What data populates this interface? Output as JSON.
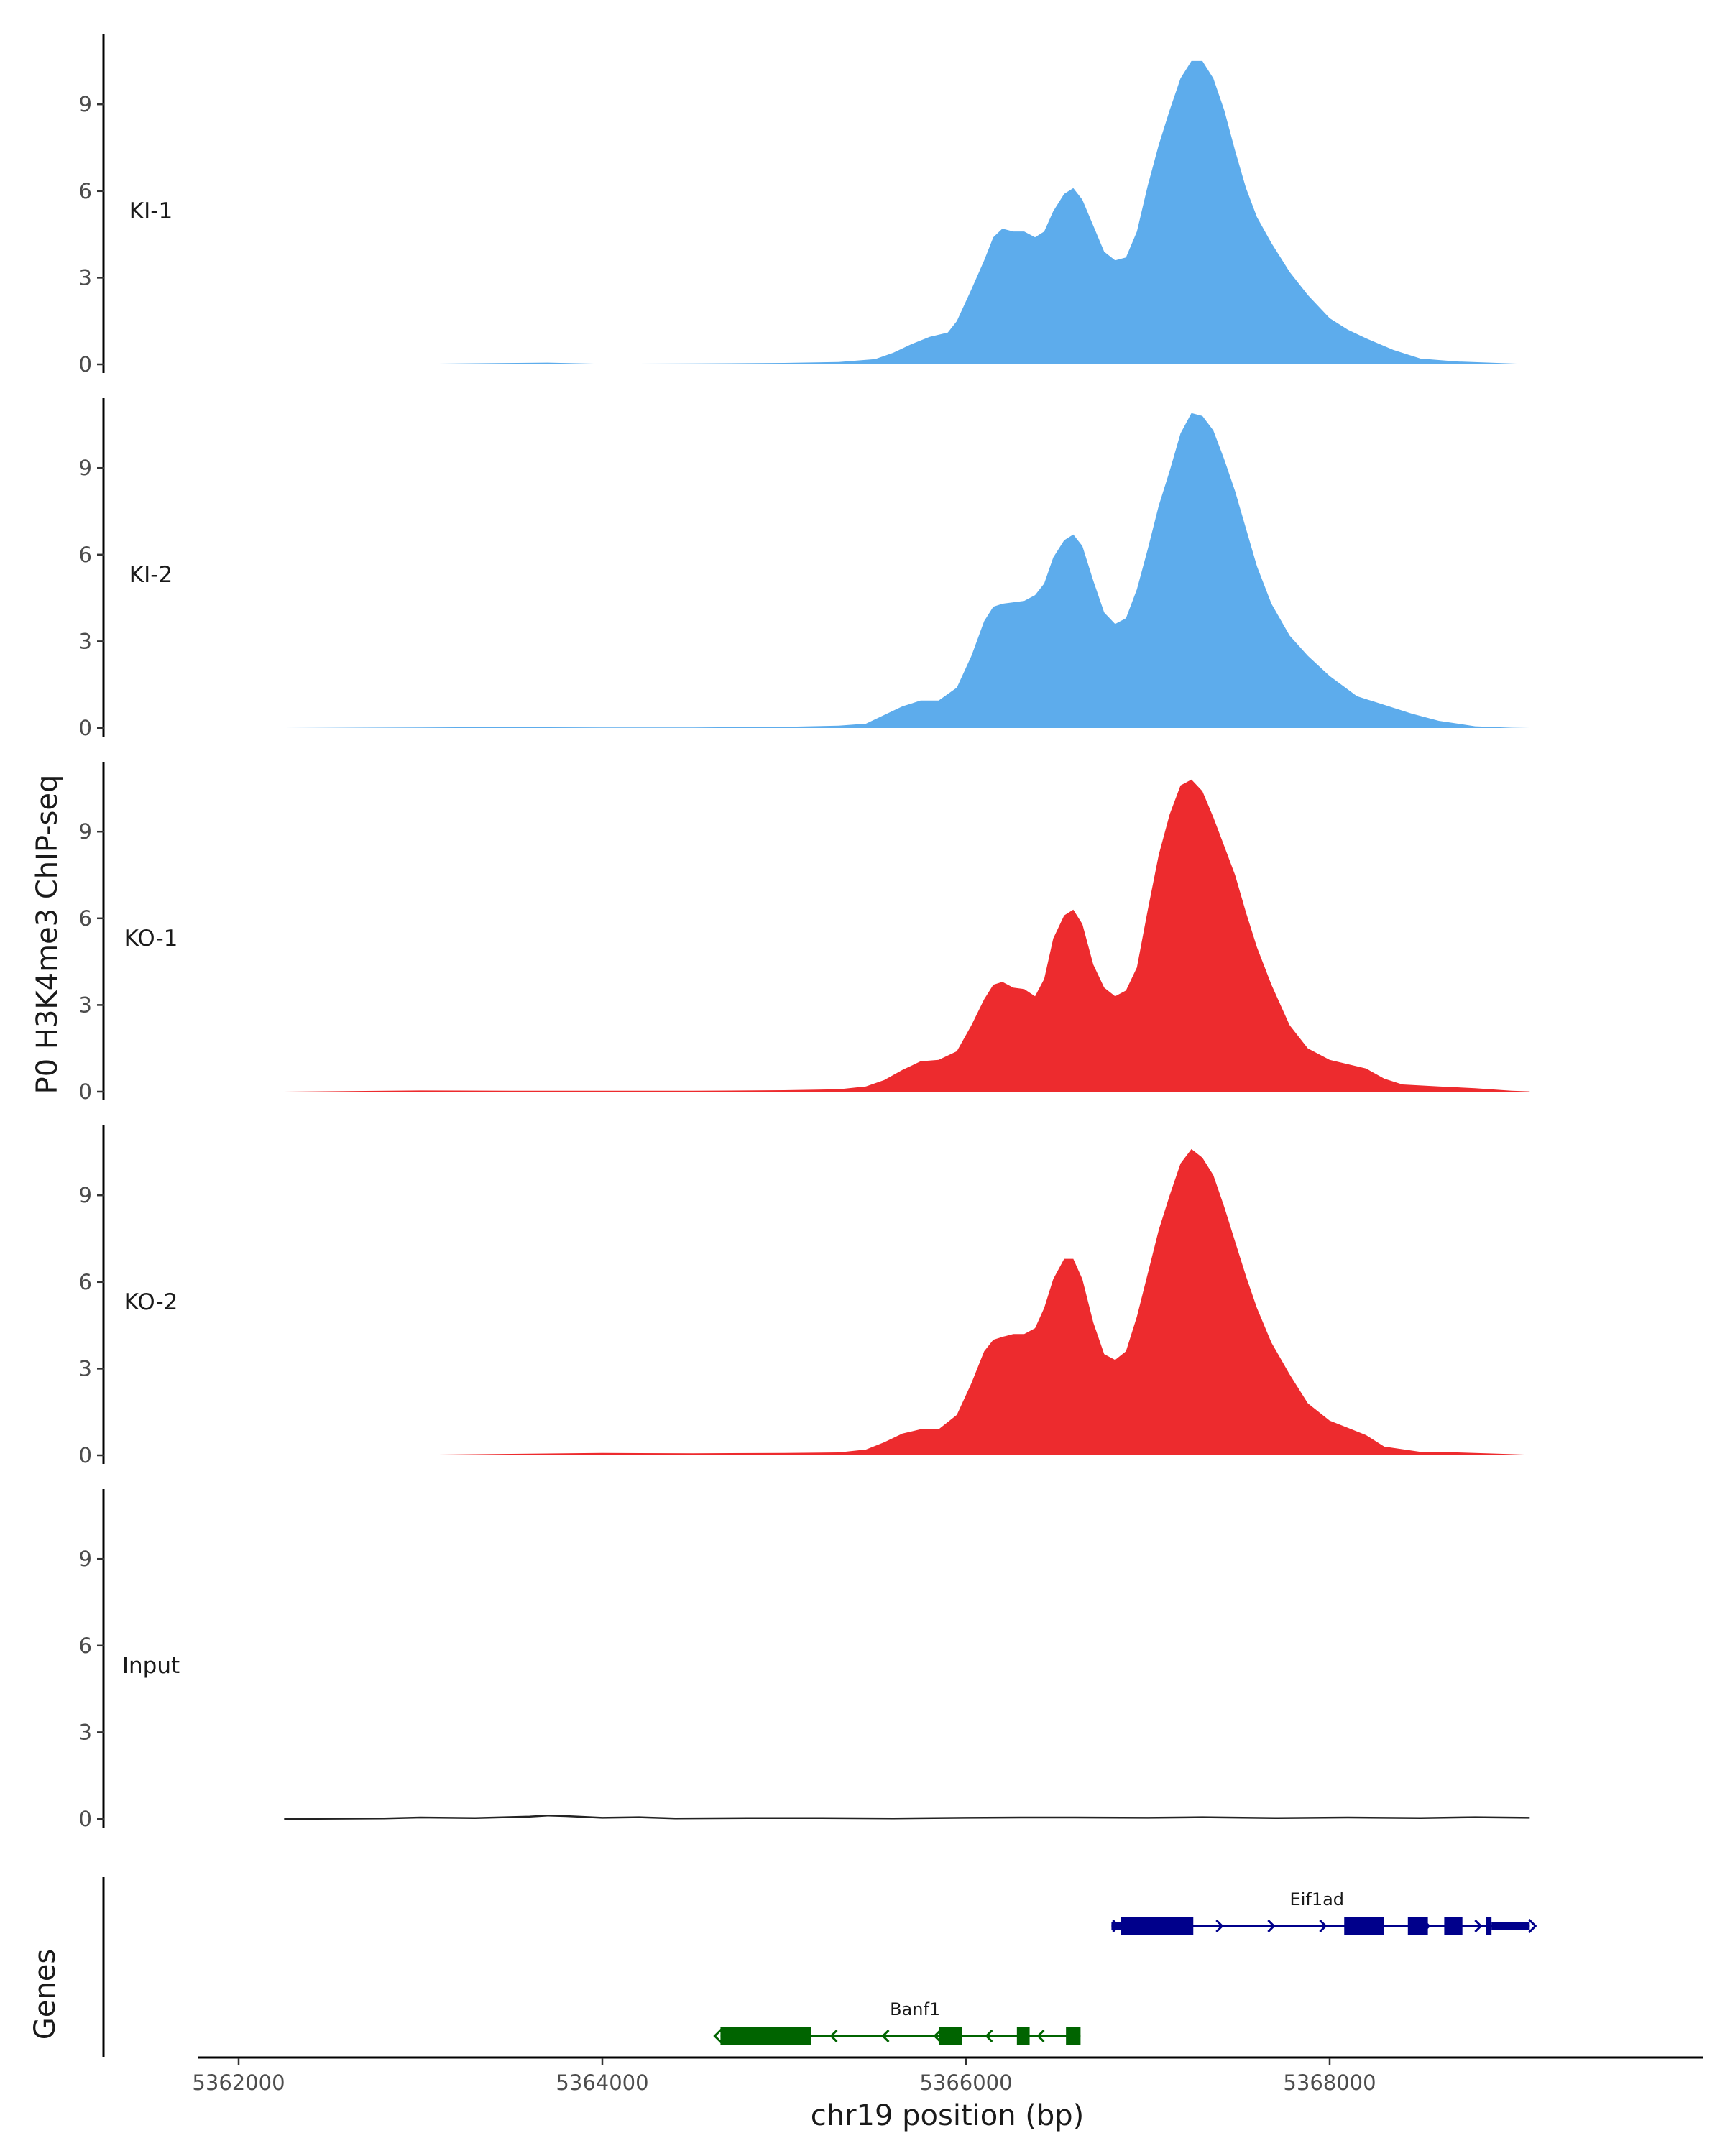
{
  "chart_data": {
    "type": "area",
    "title": "",
    "ylabel": "P0 H3K4me3 ChIP-seq",
    "xlabel": "chr19 position (bp)",
    "xlim": [
      5361850,
      5369750
    ],
    "ylim": [
      0,
      11.4
    ],
    "yticks": [
      0,
      3,
      6,
      9
    ],
    "xticks": [
      5362000,
      5364000,
      5366000,
      5368000
    ],
    "xtick_labels": [
      "5362000",
      "5364000",
      "5366000",
      "5368000"
    ],
    "gene_track_label": "Genes",
    "colors": {
      "KI": "#5DACEC",
      "KO": "#ED2B2E",
      "Input": "#222222",
      "axis": "#000000",
      "gene_plus": "#00008B",
      "gene_minus": "#006400"
    },
    "tracks": [
      {
        "name": "KI-1",
        "color": "#5DACEC",
        "points": [
          [
            5362250,
            0
          ],
          [
            5363000,
            0.02
          ],
          [
            5363700,
            0.06
          ],
          [
            5364000,
            0.02
          ],
          [
            5364500,
            0.03
          ],
          [
            5365000,
            0.05
          ],
          [
            5365300,
            0.08
          ],
          [
            5365500,
            0.18
          ],
          [
            5365600,
            0.4
          ],
          [
            5365700,
            0.7
          ],
          [
            5365800,
            0.95
          ],
          [
            5365900,
            1.1
          ],
          [
            5365950,
            1.5
          ],
          [
            5366030,
            2.6
          ],
          [
            5366100,
            3.6
          ],
          [
            5366150,
            4.4
          ],
          [
            5366200,
            4.7
          ],
          [
            5366260,
            4.6
          ],
          [
            5366320,
            4.6
          ],
          [
            5366380,
            4.4
          ],
          [
            5366430,
            4.6
          ],
          [
            5366480,
            5.3
          ],
          [
            5366540,
            5.9
          ],
          [
            5366590,
            6.1
          ],
          [
            5366640,
            5.7
          ],
          [
            5366700,
            4.8
          ],
          [
            5366760,
            3.9
          ],
          [
            5366820,
            3.6
          ],
          [
            5366880,
            3.7
          ],
          [
            5366940,
            4.6
          ],
          [
            5367000,
            6.2
          ],
          [
            5367060,
            7.6
          ],
          [
            5367120,
            8.8
          ],
          [
            5367180,
            9.9
          ],
          [
            5367240,
            10.5
          ],
          [
            5367300,
            10.5
          ],
          [
            5367360,
            9.9
          ],
          [
            5367420,
            8.8
          ],
          [
            5367480,
            7.4
          ],
          [
            5367540,
            6.1
          ],
          [
            5367600,
            5.1
          ],
          [
            5367680,
            4.2
          ],
          [
            5367780,
            3.2
          ],
          [
            5367880,
            2.4
          ],
          [
            5368000,
            1.6
          ],
          [
            5368100,
            1.2
          ],
          [
            5368200,
            0.9
          ],
          [
            5368350,
            0.5
          ],
          [
            5368500,
            0.2
          ],
          [
            5368700,
            0.1
          ],
          [
            5369000,
            0.03
          ],
          [
            5369100,
            0.01
          ]
        ]
      },
      {
        "name": "KI-2",
        "color": "#5DACEC",
        "points": [
          [
            5362250,
            0
          ],
          [
            5363000,
            0.02
          ],
          [
            5363500,
            0.03
          ],
          [
            5364000,
            0.02
          ],
          [
            5364500,
            0.02
          ],
          [
            5365000,
            0.04
          ],
          [
            5365300,
            0.08
          ],
          [
            5365450,
            0.15
          ],
          [
            5365550,
            0.45
          ],
          [
            5365650,
            0.75
          ],
          [
            5365750,
            0.95
          ],
          [
            5365850,
            0.95
          ],
          [
            5365950,
            1.4
          ],
          [
            5366030,
            2.5
          ],
          [
            5366100,
            3.7
          ],
          [
            5366150,
            4.2
          ],
          [
            5366200,
            4.3
          ],
          [
            5366260,
            4.35
          ],
          [
            5366320,
            4.4
          ],
          [
            5366380,
            4.6
          ],
          [
            5366430,
            5.0
          ],
          [
            5366480,
            5.9
          ],
          [
            5366540,
            6.5
          ],
          [
            5366590,
            6.7
          ],
          [
            5366640,
            6.3
          ],
          [
            5366700,
            5.1
          ],
          [
            5366760,
            4.0
          ],
          [
            5366820,
            3.6
          ],
          [
            5366880,
            3.8
          ],
          [
            5366940,
            4.8
          ],
          [
            5367000,
            6.2
          ],
          [
            5367060,
            7.7
          ],
          [
            5367120,
            8.9
          ],
          [
            5367180,
            10.2
          ],
          [
            5367240,
            10.9
          ],
          [
            5367300,
            10.8
          ],
          [
            5367360,
            10.3
          ],
          [
            5367420,
            9.3
          ],
          [
            5367480,
            8.2
          ],
          [
            5367540,
            6.9
          ],
          [
            5367600,
            5.6
          ],
          [
            5367680,
            4.3
          ],
          [
            5367780,
            3.2
          ],
          [
            5367880,
            2.5
          ],
          [
            5368000,
            1.8
          ],
          [
            5368150,
            1.1
          ],
          [
            5368300,
            0.8
          ],
          [
            5368450,
            0.5
          ],
          [
            5368600,
            0.25
          ],
          [
            5368800,
            0.06
          ],
          [
            5369000,
            0.01
          ],
          [
            5369100,
            0
          ]
        ]
      },
      {
        "name": "KO-1",
        "color": "#ED2B2E",
        "points": [
          [
            5362250,
            0
          ],
          [
            5363000,
            0.04
          ],
          [
            5363500,
            0.03
          ],
          [
            5364000,
            0.03
          ],
          [
            5364500,
            0.03
          ],
          [
            5365000,
            0.05
          ],
          [
            5365300,
            0.08
          ],
          [
            5365450,
            0.18
          ],
          [
            5365550,
            0.4
          ],
          [
            5365650,
            0.75
          ],
          [
            5365750,
            1.05
          ],
          [
            5365850,
            1.1
          ],
          [
            5365950,
            1.4
          ],
          [
            5366030,
            2.3
          ],
          [
            5366100,
            3.2
          ],
          [
            5366150,
            3.7
          ],
          [
            5366200,
            3.8
          ],
          [
            5366260,
            3.6
          ],
          [
            5366320,
            3.55
          ],
          [
            5366380,
            3.3
          ],
          [
            5366430,
            3.9
          ],
          [
            5366480,
            5.3
          ],
          [
            5366540,
            6.1
          ],
          [
            5366590,
            6.3
          ],
          [
            5366640,
            5.8
          ],
          [
            5366700,
            4.4
          ],
          [
            5366760,
            3.6
          ],
          [
            5366820,
            3.3
          ],
          [
            5366880,
            3.5
          ],
          [
            5366940,
            4.3
          ],
          [
            5367000,
            6.3
          ],
          [
            5367060,
            8.2
          ],
          [
            5367120,
            9.6
          ],
          [
            5367180,
            10.6
          ],
          [
            5367240,
            10.8
          ],
          [
            5367300,
            10.4
          ],
          [
            5367360,
            9.5
          ],
          [
            5367420,
            8.5
          ],
          [
            5367480,
            7.5
          ],
          [
            5367540,
            6.2
          ],
          [
            5367600,
            5.0
          ],
          [
            5367680,
            3.7
          ],
          [
            5367780,
            2.3
          ],
          [
            5367880,
            1.5
          ],
          [
            5368000,
            1.1
          ],
          [
            5368100,
            0.95
          ],
          [
            5368200,
            0.8
          ],
          [
            5368300,
            0.45
          ],
          [
            5368400,
            0.25
          ],
          [
            5368600,
            0.18
          ],
          [
            5368800,
            0.12
          ],
          [
            5369000,
            0.03
          ],
          [
            5369100,
            0.01
          ]
        ]
      },
      {
        "name": "KO-2",
        "color": "#ED2B2E",
        "points": [
          [
            5362250,
            0
          ],
          [
            5363000,
            0.02
          ],
          [
            5363500,
            0.05
          ],
          [
            5364000,
            0.08
          ],
          [
            5364500,
            0.07
          ],
          [
            5365000,
            0.08
          ],
          [
            5365300,
            0.1
          ],
          [
            5365450,
            0.2
          ],
          [
            5365550,
            0.45
          ],
          [
            5365650,
            0.75
          ],
          [
            5365750,
            0.9
          ],
          [
            5365850,
            0.9
          ],
          [
            5365950,
            1.4
          ],
          [
            5366030,
            2.5
          ],
          [
            5366100,
            3.6
          ],
          [
            5366150,
            4.0
          ],
          [
            5366200,
            4.1
          ],
          [
            5366260,
            4.2
          ],
          [
            5366320,
            4.2
          ],
          [
            5366380,
            4.4
          ],
          [
            5366430,
            5.1
          ],
          [
            5366480,
            6.1
          ],
          [
            5366540,
            6.8
          ],
          [
            5366590,
            6.8
          ],
          [
            5366640,
            6.1
          ],
          [
            5366700,
            4.6
          ],
          [
            5366760,
            3.5
          ],
          [
            5366820,
            3.3
          ],
          [
            5366880,
            3.6
          ],
          [
            5366940,
            4.8
          ],
          [
            5367000,
            6.3
          ],
          [
            5367060,
            7.8
          ],
          [
            5367120,
            9.0
          ],
          [
            5367180,
            10.1
          ],
          [
            5367240,
            10.6
          ],
          [
            5367300,
            10.3
          ],
          [
            5367360,
            9.7
          ],
          [
            5367420,
            8.6
          ],
          [
            5367480,
            7.4
          ],
          [
            5367540,
            6.2
          ],
          [
            5367600,
            5.1
          ],
          [
            5367680,
            3.9
          ],
          [
            5367780,
            2.8
          ],
          [
            5367880,
            1.8
          ],
          [
            5368000,
            1.2
          ],
          [
            5368100,
            0.95
          ],
          [
            5368200,
            0.7
          ],
          [
            5368300,
            0.3
          ],
          [
            5368500,
            0.12
          ],
          [
            5368700,
            0.1
          ],
          [
            5369000,
            0.04
          ],
          [
            5369100,
            0.02
          ]
        ]
      },
      {
        "name": "Input",
        "color": "#222222",
        "points": [
          [
            5362250,
            0
          ],
          [
            5362800,
            0.02
          ],
          [
            5363000,
            0.05
          ],
          [
            5363300,
            0.03
          ],
          [
            5363600,
            0.08
          ],
          [
            5363700,
            0.12
          ],
          [
            5363800,
            0.1
          ],
          [
            5364000,
            0.04
          ],
          [
            5364200,
            0.06
          ],
          [
            5364400,
            0.02
          ],
          [
            5364800,
            0.03
          ],
          [
            5365200,
            0.03
          ],
          [
            5365600,
            0.02
          ],
          [
            5366000,
            0.04
          ],
          [
            5366300,
            0.05
          ],
          [
            5366600,
            0.05
          ],
          [
            5367000,
            0.04
          ],
          [
            5367300,
            0.06
          ],
          [
            5367700,
            0.03
          ],
          [
            5368100,
            0.05
          ],
          [
            5368500,
            0.03
          ],
          [
            5368800,
            0.06
          ],
          [
            5369100,
            0.04
          ]
        ]
      }
    ],
    "genes": [
      {
        "name": "Eif1ad",
        "strand": "+",
        "color": "#00008B",
        "row": 0,
        "start": 5366800,
        "end": 5369100,
        "exons": [
          [
            5366800,
            5366850,
            "thin"
          ],
          [
            5366850,
            5367250,
            "thick"
          ],
          [
            5368080,
            5368300,
            "thick"
          ],
          [
            5368430,
            5368540,
            "thick"
          ],
          [
            5368630,
            5368730,
            "thick"
          ],
          [
            5368860,
            5368890,
            "thick"
          ],
          [
            5368890,
            5369100,
            "thin"
          ]
        ]
      },
      {
        "name": "Banf1",
        "strand": "-",
        "color": "#006400",
        "row": 1,
        "start": 5364650,
        "end": 5366630,
        "exons": [
          [
            5364650,
            5365150,
            "thick"
          ],
          [
            5365850,
            5365980,
            "thick"
          ],
          [
            5366280,
            5366350,
            "thick"
          ],
          [
            5366550,
            5366630,
            "thick"
          ]
        ]
      }
    ]
  }
}
